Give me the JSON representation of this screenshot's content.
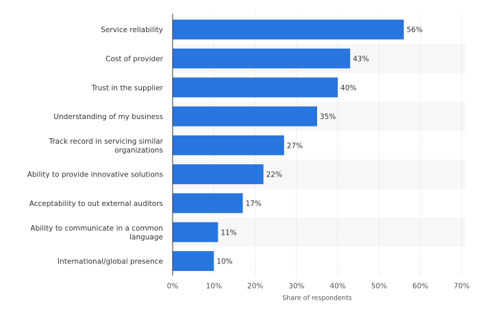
{
  "chart_data": {
    "type": "bar",
    "orientation": "horizontal",
    "categories": [
      "Service reliability",
      "Cost of provider",
      "Trust in the supplier",
      "Understanding of my business",
      "Track record in servicing similar organizations",
      "Ability to provide innovative solutions",
      "Acceptability to out external auditors",
      "Ability to communicate in a common language",
      "International/global presence"
    ],
    "category_lines": [
      [
        "Service reliability"
      ],
      [
        "Cost of provider"
      ],
      [
        "Trust in the supplier"
      ],
      [
        "Understanding of my business"
      ],
      [
        "Track record in servicing similar",
        "organizations"
      ],
      [
        "Ability to provide innovative solutions"
      ],
      [
        "Acceptability to out external auditors"
      ],
      [
        "Ability to communicate in a common",
        "language"
      ],
      [
        "International/global presence"
      ]
    ],
    "values": [
      56,
      43,
      40,
      35,
      27,
      22,
      17,
      11,
      10
    ],
    "data_labels": [
      "56%",
      "43%",
      "40%",
      "35%",
      "27%",
      "22%",
      "17%",
      "11%",
      "10%"
    ],
    "xlabel": "Share of respondents",
    "ylabel": "",
    "xlim": [
      0,
      70
    ],
    "x_ticks": [
      0,
      10,
      20,
      30,
      40,
      50,
      60,
      70
    ],
    "x_tick_labels": [
      "0%",
      "10%",
      "20%",
      "30%",
      "40%",
      "50%",
      "60%",
      "70%"
    ],
    "bar_color": "#2876DD",
    "grid": true,
    "alternating_row_shading": true
  }
}
